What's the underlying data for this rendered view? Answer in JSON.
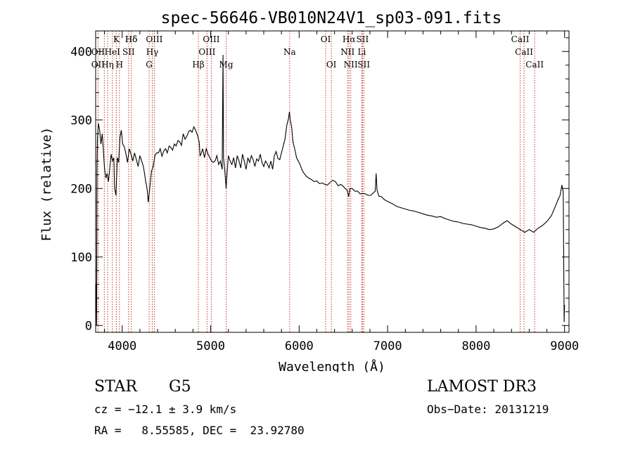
{
  "chart_data": {
    "type": "line",
    "title": "spec-56646-VB010N24V1_sp03-091.fits",
    "xlabel": "Wavelength (Å)",
    "ylabel": "Flux (relative)",
    "xlim": [
      3700,
      9050
    ],
    "ylim": [
      -10,
      430
    ],
    "x_ticks": [
      4000,
      5000,
      6000,
      7000,
      8000,
      9000
    ],
    "x_tick_labels": [
      "4000",
      "5000",
      "6000",
      "7000",
      "8000",
      "9000"
    ],
    "y_ticks": [
      0,
      100,
      200,
      300,
      400
    ],
    "y_tick_labels": [
      "0",
      "100",
      "200",
      "300",
      "400"
    ],
    "grid": false,
    "series": [
      {
        "color": "#000000",
        "points": [
          [
            3705,
            60
          ],
          [
            3710,
            0
          ],
          [
            3715,
            230
          ],
          [
            3720,
            270
          ],
          [
            3730,
            295
          ],
          [
            3745,
            285
          ],
          [
            3760,
            265
          ],
          [
            3775,
            280
          ],
          [
            3790,
            250
          ],
          [
            3800,
            230
          ],
          [
            3815,
            215
          ],
          [
            3830,
            222
          ],
          [
            3845,
            210
          ],
          [
            3860,
            230
          ],
          [
            3875,
            250
          ],
          [
            3890,
            240
          ],
          [
            3905,
            245
          ],
          [
            3915,
            200
          ],
          [
            3930,
            190
          ],
          [
            3945,
            245
          ],
          [
            3960,
            238
          ],
          [
            3975,
            275
          ],
          [
            3990,
            285
          ],
          [
            4005,
            265
          ],
          [
            4020,
            262
          ],
          [
            4040,
            252
          ],
          [
            4060,
            238
          ],
          [
            4080,
            258
          ],
          [
            4100,
            250
          ],
          [
            4120,
            240
          ],
          [
            4140,
            252
          ],
          [
            4160,
            242
          ],
          [
            4180,
            232
          ],
          [
            4200,
            248
          ],
          [
            4220,
            240
          ],
          [
            4240,
            232
          ],
          [
            4255,
            220
          ],
          [
            4265,
            210
          ],
          [
            4275,
            205
          ],
          [
            4285,
            195
          ],
          [
            4295,
            180
          ],
          [
            4310,
            198
          ],
          [
            4330,
            225
          ],
          [
            4350,
            232
          ],
          [
            4370,
            248
          ],
          [
            4390,
            252
          ],
          [
            4410,
            252
          ],
          [
            4430,
            258
          ],
          [
            4450,
            247
          ],
          [
            4470,
            255
          ],
          [
            4490,
            258
          ],
          [
            4510,
            252
          ],
          [
            4530,
            262
          ],
          [
            4550,
            260
          ],
          [
            4570,
            256
          ],
          [
            4590,
            265
          ],
          [
            4610,
            262
          ],
          [
            4630,
            270
          ],
          [
            4650,
            268
          ],
          [
            4670,
            263
          ],
          [
            4690,
            280
          ],
          [
            4710,
            272
          ],
          [
            4730,
            276
          ],
          [
            4750,
            283
          ],
          [
            4770,
            285
          ],
          [
            4790,
            282
          ],
          [
            4810,
            290
          ],
          [
            4830,
            285
          ],
          [
            4850,
            278
          ],
          [
            4870,
            268
          ],
          [
            4880,
            248
          ],
          [
            4890,
            250
          ],
          [
            4910,
            258
          ],
          [
            4930,
            245
          ],
          [
            4950,
            258
          ],
          [
            4970,
            250
          ],
          [
            4990,
            245
          ],
          [
            5010,
            240
          ],
          [
            5030,
            238
          ],
          [
            5050,
            240
          ],
          [
            5070,
            248
          ],
          [
            5090,
            235
          ],
          [
            5110,
            240
          ],
          [
            5130,
            228
          ],
          [
            5140,
            395
          ],
          [
            5145,
            245
          ],
          [
            5160,
            225
          ],
          [
            5175,
            200
          ],
          [
            5185,
            222
          ],
          [
            5200,
            248
          ],
          [
            5220,
            240
          ],
          [
            5240,
            235
          ],
          [
            5260,
            245
          ],
          [
            5280,
            230
          ],
          [
            5300,
            248
          ],
          [
            5320,
            240
          ],
          [
            5340,
            230
          ],
          [
            5360,
            250
          ],
          [
            5380,
            240
          ],
          [
            5400,
            228
          ],
          [
            5420,
            245
          ],
          [
            5440,
            238
          ],
          [
            5460,
            248
          ],
          [
            5480,
            242
          ],
          [
            5500,
            232
          ],
          [
            5520,
            243
          ],
          [
            5540,
            240
          ],
          [
            5560,
            250
          ],
          [
            5580,
            238
          ],
          [
            5600,
            232
          ],
          [
            5620,
            240
          ],
          [
            5640,
            236
          ],
          [
            5660,
            230
          ],
          [
            5680,
            240
          ],
          [
            5700,
            228
          ],
          [
            5720,
            248
          ],
          [
            5740,
            254
          ],
          [
            5760,
            244
          ],
          [
            5780,
            242
          ],
          [
            5800,
            252
          ],
          [
            5820,
            262
          ],
          [
            5840,
            272
          ],
          [
            5860,
            292
          ],
          [
            5880,
            302
          ],
          [
            5890,
            312
          ],
          [
            5900,
            300
          ],
          [
            5915,
            290
          ],
          [
            5930,
            268
          ],
          [
            5950,
            258
          ],
          [
            5970,
            245
          ],
          [
            5990,
            240
          ],
          [
            6010,
            235
          ],
          [
            6030,
            228
          ],
          [
            6050,
            223
          ],
          [
            6080,
            218
          ],
          [
            6110,
            215
          ],
          [
            6140,
            213
          ],
          [
            6170,
            210
          ],
          [
            6200,
            211
          ],
          [
            6230,
            207
          ],
          [
            6260,
            208
          ],
          [
            6290,
            206
          ],
          [
            6320,
            205
          ],
          [
            6350,
            209
          ],
          [
            6380,
            212
          ],
          [
            6410,
            210
          ],
          [
            6440,
            204
          ],
          [
            6470,
            206
          ],
          [
            6500,
            203
          ],
          [
            6520,
            200
          ],
          [
            6540,
            198
          ],
          [
            6560,
            188
          ],
          [
            6575,
            200
          ],
          [
            6600,
            200
          ],
          [
            6630,
            196
          ],
          [
            6660,
            196
          ],
          [
            6690,
            192
          ],
          [
            6720,
            193
          ],
          [
            6750,
            192
          ],
          [
            6780,
            190
          ],
          [
            6810,
            190
          ],
          [
            6840,
            194
          ],
          [
            6860,
            196
          ],
          [
            6870,
            222
          ],
          [
            6880,
            198
          ],
          [
            6900,
            189
          ],
          [
            6930,
            188
          ],
          [
            6960,
            184
          ],
          [
            7000,
            181
          ],
          [
            7050,
            178
          ],
          [
            7100,
            174
          ],
          [
            7150,
            172
          ],
          [
            7200,
            170
          ],
          [
            7250,
            168
          ],
          [
            7300,
            167
          ],
          [
            7350,
            165
          ],
          [
            7400,
            163
          ],
          [
            7450,
            161
          ],
          [
            7500,
            160
          ],
          [
            7550,
            158
          ],
          [
            7600,
            159
          ],
          [
            7650,
            156
          ],
          [
            7700,
            154
          ],
          [
            7750,
            152
          ],
          [
            7800,
            151
          ],
          [
            7850,
            149
          ],
          [
            7900,
            148
          ],
          [
            7950,
            147
          ],
          [
            8000,
            145
          ],
          [
            8050,
            143
          ],
          [
            8100,
            142
          ],
          [
            8150,
            140
          ],
          [
            8200,
            141
          ],
          [
            8250,
            144
          ],
          [
            8300,
            149
          ],
          [
            8350,
            153
          ],
          [
            8400,
            148
          ],
          [
            8450,
            144
          ],
          [
            8500,
            140
          ],
          [
            8550,
            136
          ],
          [
            8600,
            140
          ],
          [
            8650,
            136
          ],
          [
            8700,
            142
          ],
          [
            8750,
            146
          ],
          [
            8800,
            152
          ],
          [
            8850,
            160
          ],
          [
            8900,
            175
          ],
          [
            8930,
            185
          ],
          [
            8950,
            190
          ],
          [
            8970,
            205
          ],
          [
            8985,
            195
          ],
          [
            8995,
            5
          ],
          [
            9000,
            30
          ]
        ]
      }
    ],
    "lines": [
      {
        "label": "Hδ",
        "row": 0,
        "xs": [
          4102
        ]
      },
      {
        "label": "K",
        "row": 0,
        "xs": [
          3934
        ]
      },
      {
        "label": "Hδ",
        "row": 0,
        "xs": [
          4102
        ]
      },
      {
        "label": "OIII",
        "row": 0,
        "xs": [
          4363
        ]
      },
      {
        "label": "OIII",
        "row": 0,
        "xs": [
          5007
        ]
      },
      {
        "label": "OI",
        "row": 0,
        "xs": [
          6300
        ]
      },
      {
        "label": "Hα",
        "row": 0,
        "xs": [
          6563
        ]
      },
      {
        "label": "SII",
        "row": 0,
        "xs": [
          6716
        ]
      },
      {
        "label": "CaII",
        "row": 0,
        "xs": [
          8498
        ]
      },
      {
        "label": "OII",
        "row": 1,
        "xs": [
          3727
        ]
      },
      {
        "label": "HeI",
        "row": 1,
        "xs": [
          3889
        ]
      },
      {
        "label": "SII",
        "row": 1,
        "xs": [
          4072
        ]
      },
      {
        "label": "Hγ",
        "row": 1,
        "xs": [
          4340
        ]
      },
      {
        "label": "OIII",
        "row": 1,
        "xs": [
          4959
        ]
      },
      {
        "label": "Na",
        "row": 1,
        "xs": [
          5893
        ]
      },
      {
        "label": "NII",
        "row": 1,
        "xs": [
          6548
        ]
      },
      {
        "label": "Li",
        "row": 1,
        "xs": [
          6708
        ]
      },
      {
        "label": "CaII",
        "row": 1,
        "xs": [
          8542
        ]
      },
      {
        "label": "OII",
        "row": 2,
        "xs": [
          3727
        ]
      },
      {
        "label": "Hη",
        "row": 2,
        "xs": [
          3835
        ]
      },
      {
        "label": "H",
        "row": 2,
        "xs": [
          3969
        ]
      },
      {
        "label": "G",
        "row": 2,
        "xs": [
          4305
        ]
      },
      {
        "label": "Hβ",
        "row": 2,
        "xs": [
          4861
        ]
      },
      {
        "label": "Mg",
        "row": 2,
        "xs": [
          5175
        ]
      },
      {
        "label": "OI",
        "row": 2,
        "xs": [
          6364
        ]
      },
      {
        "label": "NII",
        "row": 2,
        "xs": [
          6583
        ]
      },
      {
        "label": "SII",
        "row": 2,
        "xs": [
          6731
        ]
      },
      {
        "label": "CaII",
        "row": 2,
        "xs": [
          8662
        ]
      }
    ],
    "line_marks": [
      3727,
      3798,
      3835,
      3889,
      3934,
      3969,
      4072,
      4102,
      4305,
      4340,
      4363,
      4861,
      4959,
      5007,
      5175,
      5893,
      6300,
      6364,
      6548,
      6563,
      6583,
      6708,
      6716,
      6731,
      8498,
      8542,
      8662
    ]
  },
  "info": {
    "class": "STAR",
    "subclass": "G5",
    "survey": "LAMOST DR3",
    "cz": "cz = −12.1 ± 3.9 km/s",
    "obs_date": "Obs−Date: 20131219",
    "coords": "RA =   8.55585, DEC =  23.92780"
  }
}
